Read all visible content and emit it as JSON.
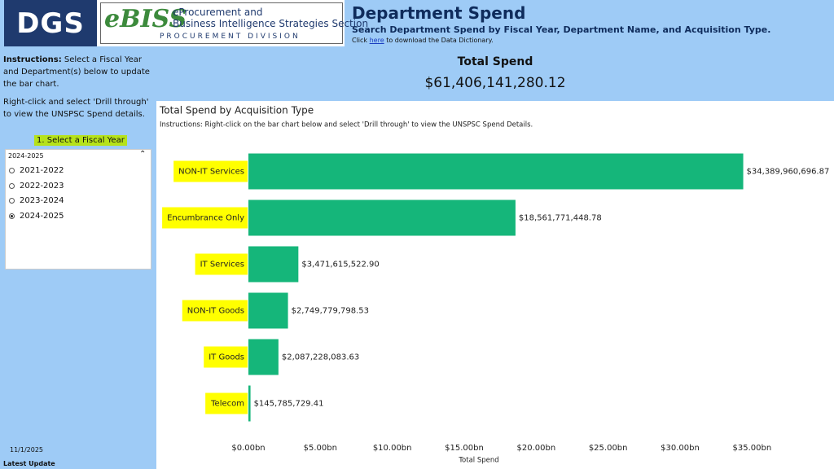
{
  "header": {
    "logo_dgs": "DGS",
    "logo_ebiss": "eBISS",
    "logo_line1": "eProcurement and",
    "logo_line2": "Business Intelligence Strategies Section",
    "logo_division": "PROCUREMENT DIVISION",
    "title": "Department Spend",
    "subtitle": "Search Department Spend by Fiscal Year, Department Name, and Acquisition Type.",
    "dictionary_prefix": "Click",
    "dictionary_link": "here",
    "dictionary_suffix": "to download the Data Dictionary."
  },
  "sidebar": {
    "instructions_label": "Instructions:",
    "instructions_text": "Select a Fiscal Year and Department(s) below to update the bar chart.",
    "drill_text": "Right-click and select 'Drill through' to view the UNSPSC Spend details.",
    "slicer_title": "1. Select a Fiscal Year",
    "slicer_selected": "2024-2025",
    "options": [
      "2021-2022",
      "2022-2023",
      "2023-2024",
      "2024-2025"
    ],
    "update_date": "11/1/2025",
    "update_label": "Latest Update"
  },
  "kpi": {
    "label": "Total Spend",
    "value": "$61,406,141,280.12"
  },
  "chart_data": {
    "type": "bar",
    "orientation": "horizontal",
    "title": "Total Spend by Acquisition Type",
    "subtitle": "Instructions: Right-click on the bar chart below and select 'Drill through' to view the UNSPSC Spend Details.",
    "categories": [
      "NON-IT Services",
      "Encumbrance Only",
      "IT Services",
      "NON-IT Goods",
      "IT Goods",
      "Telecom"
    ],
    "values": [
      34.38996069687,
      18.56177144878,
      3.4716155229,
      2.74977979853,
      2.08722808363,
      0.14578572941
    ],
    "value_labels": [
      "$34,389,960,696.87",
      "$18,561,771,448.78",
      "$3,471,615,522.90",
      "$2,749,779,798.53",
      "$2,087,228,083.63",
      "$145,785,729.41"
    ],
    "color": "#15b67a",
    "category_highlight": "#ffff00",
    "xlabel": "Total Spend",
    "xlim": [
      0,
      36
    ],
    "xticks": [
      {
        "value": 0,
        "label": "$0.00bn"
      },
      {
        "value": 5,
        "label": "$5.00bn"
      },
      {
        "value": 10,
        "label": "$10.00bn"
      },
      {
        "value": 15,
        "label": "$15.00bn"
      },
      {
        "value": 20,
        "label": "$20.00bn"
      },
      {
        "value": 25,
        "label": "$25.00bn"
      },
      {
        "value": 30,
        "label": "$30.00bn"
      },
      {
        "value": 35,
        "label": "$35.00bn"
      }
    ]
  }
}
